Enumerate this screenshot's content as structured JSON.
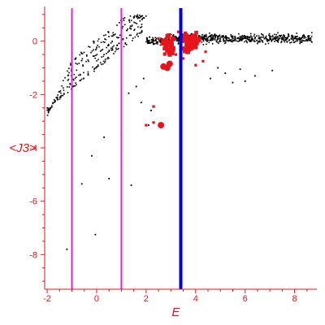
{
  "chart_data": {
    "type": "scatter",
    "xlabel": "E",
    "ylabel": "<J3>",
    "xlim": [
      -2.1,
      8.9
    ],
    "ylim": [
      -9.3,
      1.3
    ],
    "x_ticks": [
      -2,
      0,
      2,
      4,
      6,
      8
    ],
    "y_ticks": [
      0,
      -2,
      -4,
      -6,
      -8
    ],
    "grid": false,
    "legend": "none",
    "vertical_lines": [
      {
        "x": -1.0,
        "color": "#e020e0"
      },
      {
        "x": 1.0,
        "color": "#e020e0"
      },
      {
        "x": 3.4,
        "color": "#0000e0"
      }
    ],
    "colors": {
      "axis": "#e8141c",
      "black_points": "#000000",
      "red_points": "#e8141c"
    },
    "black_band": {
      "x_range": [
        2.0,
        8.7
      ],
      "y_center": 0.1,
      "y_spread": 0.25,
      "count": 700
    },
    "black_rising": {
      "x_range": [
        -2.0,
        2.0
      ],
      "count": 300
    },
    "black_extra": [
      [
        -1.2,
        -7.8
      ],
      [
        -0.05,
        -7.25
      ],
      [
        0.5,
        -5.15
      ],
      [
        1.4,
        -5.4
      ],
      [
        1.0,
        -4.5
      ],
      [
        -1.0,
        -4.95
      ],
      [
        -0.6,
        -5.35
      ],
      [
        1.0,
        -3.45
      ],
      [
        1.8,
        -2.3
      ],
      [
        2.2,
        -2.6
      ],
      [
        2.1,
        -3.15
      ],
      [
        -0.2,
        -4.3
      ],
      [
        0.3,
        -3.6
      ],
      [
        1.6,
        -1.7
      ],
      [
        1.3,
        -1.95
      ],
      [
        1.9,
        -1.4
      ],
      [
        5.5,
        -1.55
      ],
      [
        6.0,
        -1.5
      ],
      [
        6.4,
        -1.3
      ],
      [
        5.2,
        -1.2
      ],
      [
        7.1,
        -1.1
      ],
      [
        4.6,
        -1.4
      ],
      [
        5.8,
        -1.05
      ],
      [
        4.9,
        -1.0
      ]
    ],
    "red_cluster_1": {
      "x_center": 2.9,
      "y_center": -0.15,
      "x_spread": 0.35,
      "y_spread": 0.5,
      "count": 45
    },
    "red_cluster_2": {
      "x_center": 3.8,
      "y_center": -0.05,
      "x_spread": 0.4,
      "y_spread": 0.45,
      "count": 70
    },
    "red_large": [
      [
        2.6,
        -3.15
      ],
      [
        2.85,
        -1.0
      ],
      [
        2.7,
        -0.95
      ],
      [
        3.9,
        0.15
      ],
      [
        3.7,
        -0.3
      ],
      [
        2.95,
        -0.85
      ],
      [
        4.1,
        0.05
      ],
      [
        3.6,
        0.2
      ]
    ],
    "red_scattered": [
      [
        2.3,
        -2.45
      ],
      [
        2.0,
        -3.15
      ],
      [
        2.3,
        -3.05
      ],
      [
        4.3,
        -0.75
      ],
      [
        3.2,
        -0.5
      ],
      [
        3.5,
        -0.65
      ],
      [
        3.3,
        0.35
      ],
      [
        4.4,
        -0.4
      ],
      [
        2.5,
        0.1
      ],
      [
        4.0,
        -0.9
      ]
    ]
  }
}
